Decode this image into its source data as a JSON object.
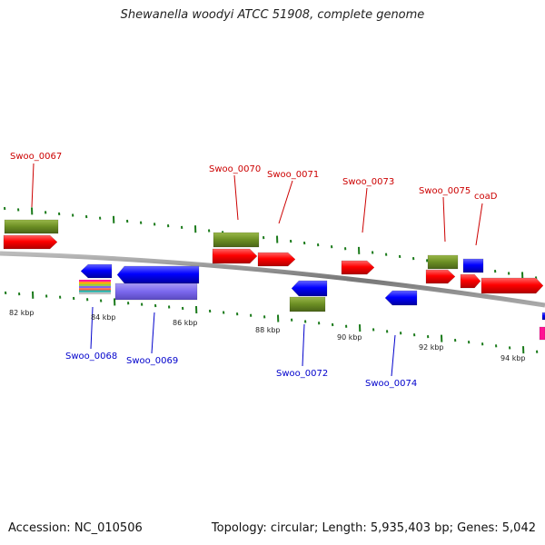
{
  "title": "Shewanella woodyi ATCC 51908, complete genome",
  "footer": {
    "accession": "Accession: NC_010506",
    "summary": "Topology: circular; Length: 5,935,403 bp; Genes: 5,042"
  },
  "colors": {
    "forward_gene": "#ff0000",
    "forward_cds": "#6b8e23",
    "forward_label": "#cc0000",
    "reverse_gene": "#0000ff",
    "reverse_rna": "#7b68ee",
    "reverse_label": "#0000cc",
    "tick": "#1a7a1a",
    "backbone": "#888888"
  },
  "kbp_ticks": [
    "82 kbp",
    "84 kbp",
    "86 kbp",
    "88 kbp",
    "90 kbp",
    "92 kbp",
    "94 kbp"
  ],
  "forward_labels": [
    "Swoo_0067",
    "Swoo_0070",
    "Swoo_0071",
    "Swoo_0073",
    "Swoo_0075",
    "coaD"
  ],
  "reverse_labels": [
    "Swoo_0068",
    "Swoo_0069",
    "Swoo_0072",
    "Swoo_0074"
  ]
}
